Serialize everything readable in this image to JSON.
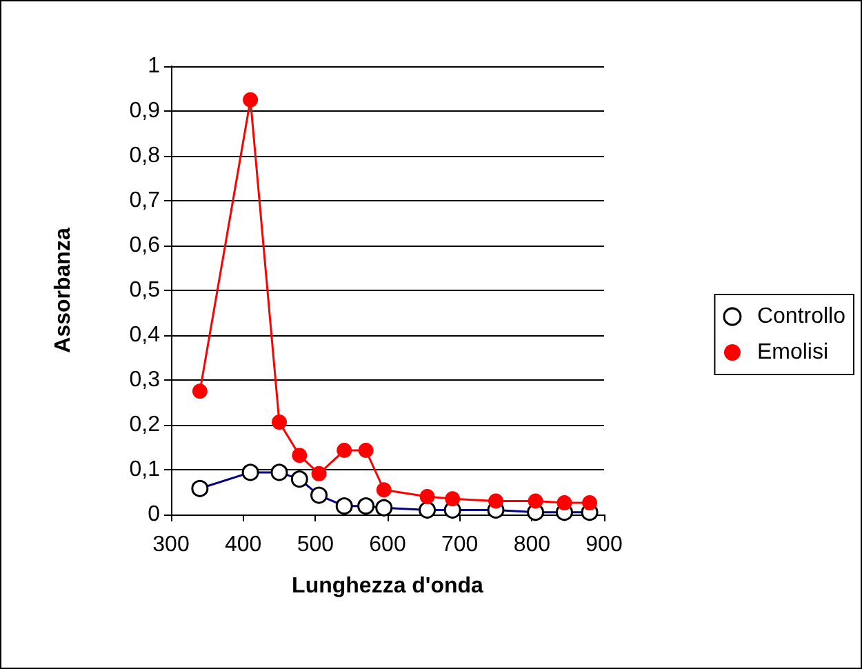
{
  "chart_data": {
    "type": "line",
    "xlabel": "Lunghezza d'onda",
    "ylabel": "Assorbanza",
    "x": [
      340,
      410,
      450,
      478,
      505,
      540,
      570,
      595,
      655,
      690,
      750,
      805,
      845,
      880
    ],
    "series": [
      {
        "name": "Controllo",
        "color": "#000080",
        "marker": "circle",
        "values": [
          0.058,
          0.094,
          0.094,
          0.079,
          0.043,
          0.019,
          0.019,
          0.015,
          0.01,
          0.01,
          0.01,
          0.005,
          0.005,
          0.005
        ]
      },
      {
        "name": "Emolisi",
        "color": "#ff0000",
        "marker": "circle",
        "values": [
          0.275,
          0.925,
          0.206,
          0.132,
          0.091,
          0.143,
          0.143,
          0.055,
          0.04,
          0.035,
          0.03,
          0.03,
          0.026,
          0.026
        ]
      }
    ],
    "xlim": [
      300,
      900
    ],
    "xticks": [
      300,
      400,
      500,
      600,
      700,
      800,
      900
    ],
    "ylim": [
      0,
      1
    ],
    "yticks": [
      {
        "value": 0,
        "label": "0"
      },
      {
        "value": 0.1,
        "label": "0,1"
      },
      {
        "value": 0.2,
        "label": "0,2"
      },
      {
        "value": 0.3,
        "label": "0,3"
      },
      {
        "value": 0.4,
        "label": "0,4"
      },
      {
        "value": 0.5,
        "label": "0,5"
      },
      {
        "value": 0.6,
        "label": "0,6"
      },
      {
        "value": 0.7,
        "label": "0,7"
      },
      {
        "value": 0.8,
        "label": "0,8"
      },
      {
        "value": 0.9,
        "label": "0,9"
      },
      {
        "value": 1,
        "label": "1"
      }
    ],
    "grid": "y",
    "legend": "right"
  }
}
